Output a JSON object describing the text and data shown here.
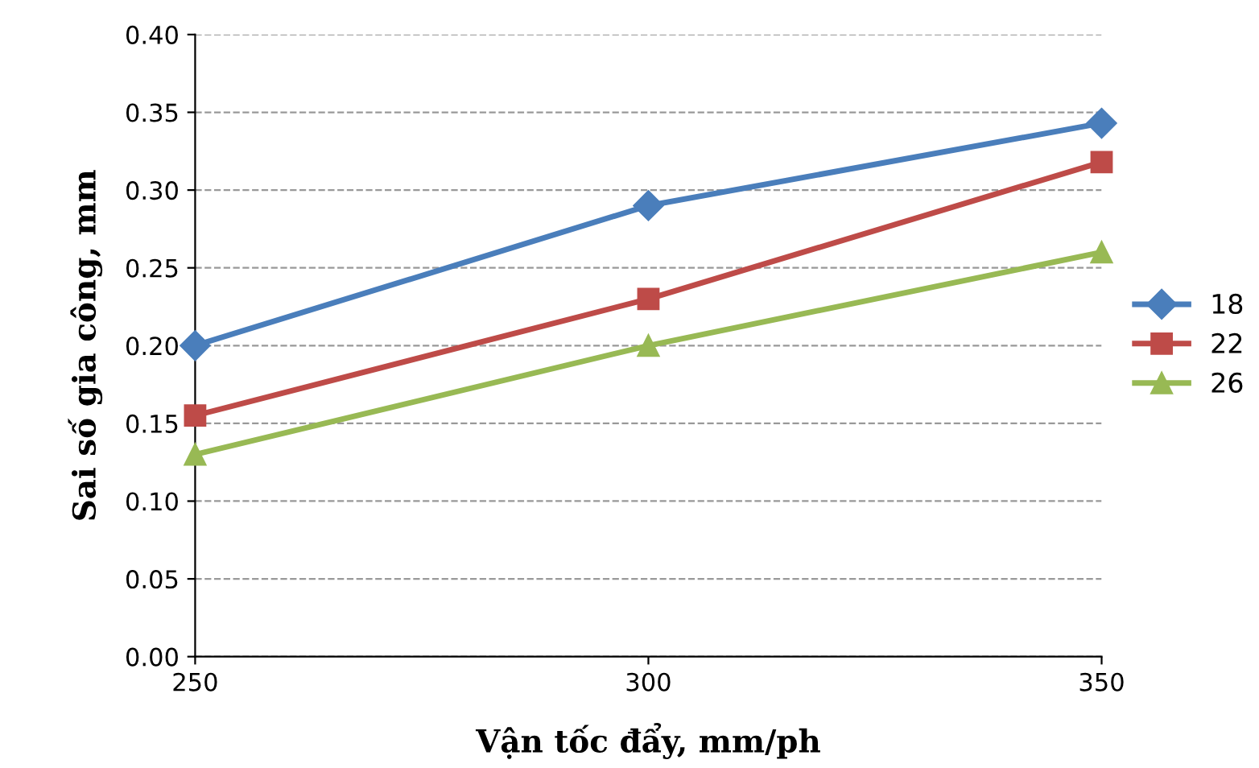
{
  "chart_data": {
    "type": "line",
    "xlabel": "Vận tốc đẩy, mm/ph",
    "ylabel": "Sai số gia công, mm",
    "x": [
      250,
      300,
      350
    ],
    "series": [
      {
        "name": "18",
        "color": "#4a7ebb",
        "marker": "diamond",
        "values": [
          0.2,
          0.29,
          0.343
        ]
      },
      {
        "name": "22",
        "color": "#be4b48",
        "marker": "square",
        "values": [
          0.155,
          0.23,
          0.318
        ]
      },
      {
        "name": "26",
        "color": "#98b954",
        "marker": "triangle",
        "values": [
          0.13,
          0.2,
          0.26
        ]
      }
    ],
    "xlim": [
      250,
      350
    ],
    "xticks": [
      250,
      300,
      350
    ],
    "ylim": [
      0,
      0.4
    ],
    "yticks": [
      {
        "value": 0,
        "label": "0.00"
      },
      {
        "value": 0.05,
        "label": "0.05"
      },
      {
        "value": 0.1,
        "label": "0.10"
      },
      {
        "value": 0.15,
        "label": "0.15"
      },
      {
        "value": 0.2,
        "label": "0.20"
      },
      {
        "value": 0.25,
        "label": "0.25"
      },
      {
        "value": 0.3,
        "label": "0.30"
      },
      {
        "value": 0.35,
        "label": "0.35"
      },
      {
        "value": 0.4,
        "label": "0.40"
      }
    ],
    "grid": "y",
    "legend": "right",
    "line_style": "solid"
  }
}
